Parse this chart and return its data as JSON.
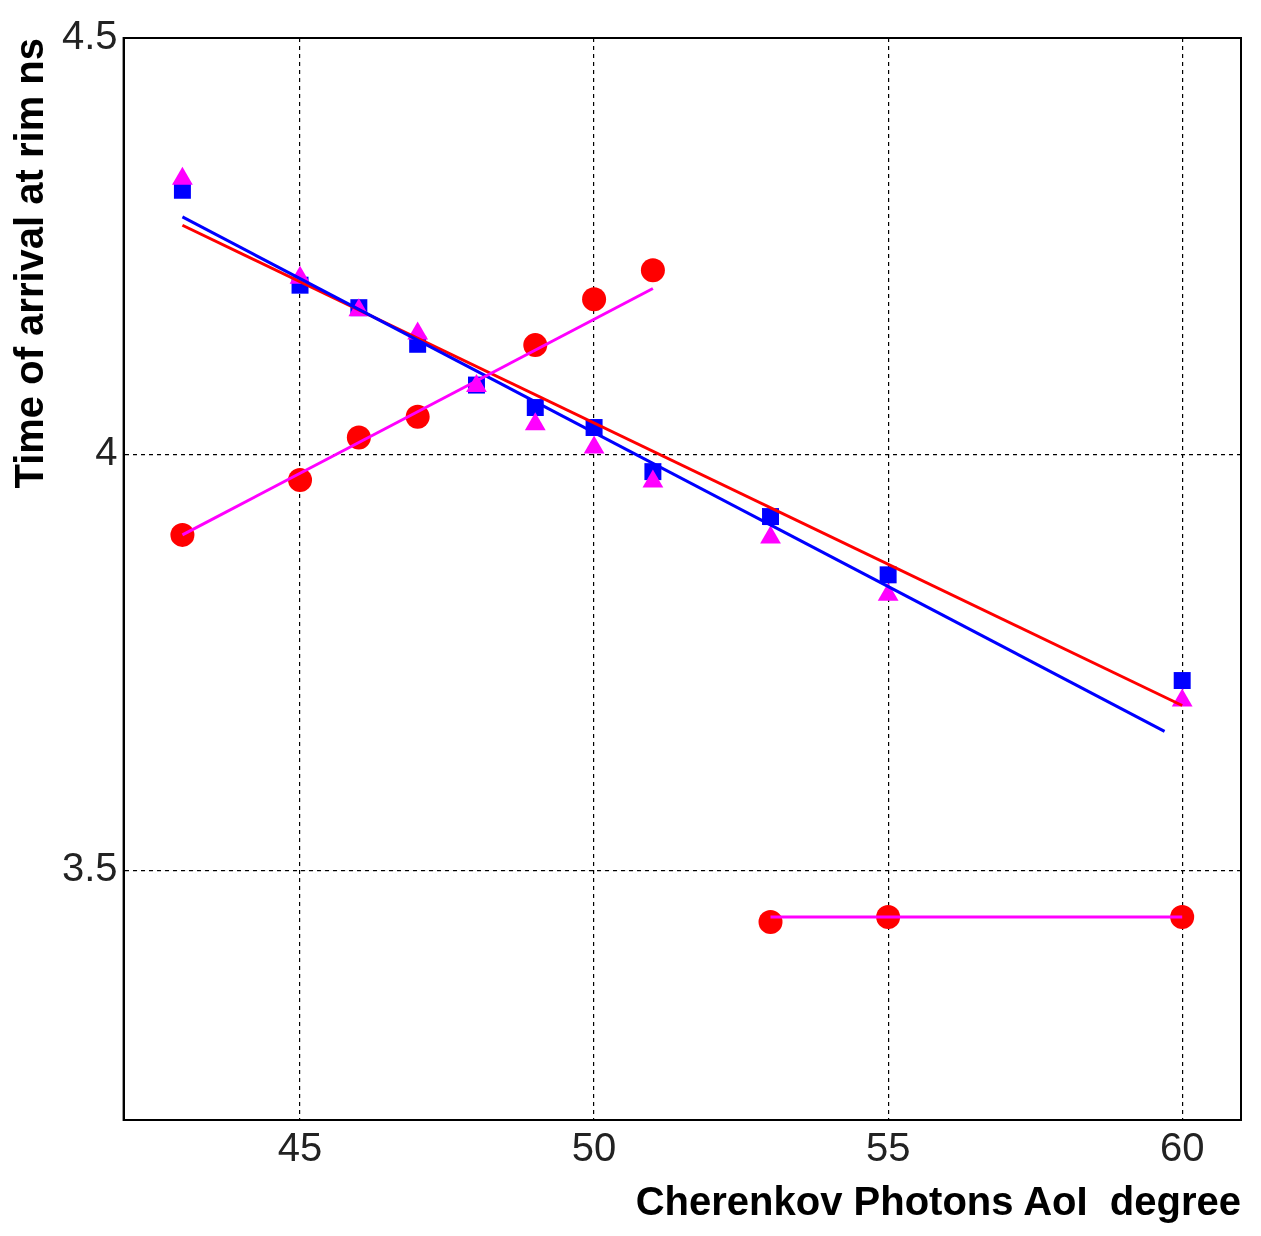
{
  "chart_data": {
    "type": "scatter",
    "xlabel": "Cherenkov Photons AoI  degree",
    "ylabel": "Time of arrival at rim ns",
    "xlim": [
      42,
      61
    ],
    "ylim": [
      3.2,
      4.5
    ],
    "xticks": [
      45,
      50,
      55,
      60
    ],
    "yticks": [
      3.5,
      4,
      4.5
    ],
    "grid": true,
    "legend": false,
    "series": [
      {
        "type": "line",
        "marker": "none",
        "color": "#ff00ff",
        "x": [
          43,
          51
        ],
        "values": [
          3.903,
          4.199
        ]
      },
      {
        "type": "line",
        "marker": "none",
        "color": "#ff00ff",
        "x": [
          53,
          60
        ],
        "values": [
          3.444,
          3.444
        ]
      },
      {
        "type": "line",
        "marker": "none",
        "color": "#0000ff",
        "x": [
          43,
          59.7
        ],
        "values": [
          4.285,
          3.667
        ]
      },
      {
        "type": "line",
        "marker": "none",
        "color": "#ff0000",
        "x": [
          43,
          60
        ],
        "values": [
          4.275,
          3.698
        ]
      },
      {
        "marker": "circle",
        "color": "#ff0000",
        "x": [
          43,
          45,
          46,
          47,
          49,
          50,
          51,
          53,
          55,
          60
        ],
        "values": [
          3.903,
          3.969,
          4.02,
          4.045,
          4.131,
          4.186,
          4.221,
          3.438,
          3.444,
          3.444
        ]
      },
      {
        "marker": "square",
        "color": "#0000ff",
        "x": [
          43,
          45,
          46,
          47,
          48,
          49,
          50,
          51,
          53,
          55,
          60
        ],
        "values": [
          4.317,
          4.203,
          4.176,
          4.132,
          4.083,
          4.056,
          4.032,
          3.979,
          3.925,
          3.855,
          3.728
        ]
      },
      {
        "marker": "triangle",
        "color": "#ff00ff",
        "x": [
          43,
          45,
          46,
          47,
          48,
          49,
          50,
          51,
          53,
          55,
          60
        ],
        "values": [
          4.331,
          4.212,
          4.173,
          4.145,
          4.082,
          4.036,
          4.008,
          3.967,
          3.9,
          3.831,
          3.704
        ]
      }
    ]
  }
}
